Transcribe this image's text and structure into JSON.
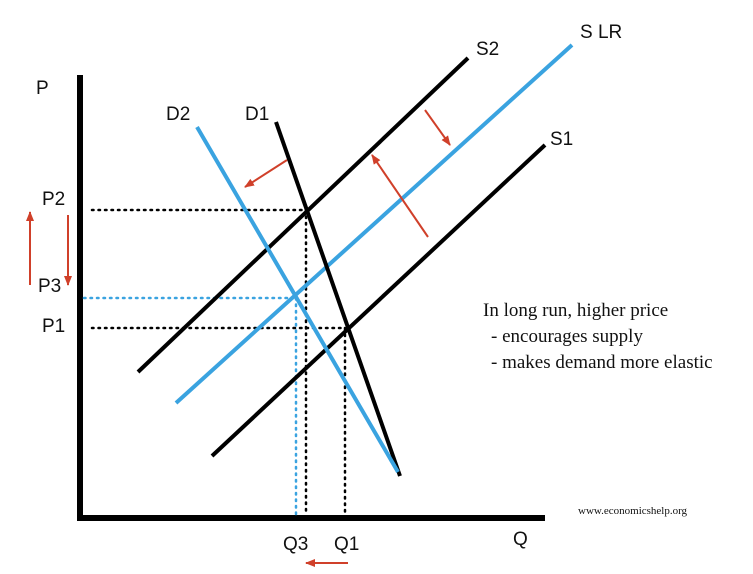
{
  "axes": {
    "y": "P",
    "x": "Q"
  },
  "curves": {
    "d2": "D2",
    "d1": "D1",
    "s2": "S2",
    "slr": "S LR",
    "s1": "S1"
  },
  "prices": [
    "P2",
    "P3",
    "P1"
  ],
  "quantities": [
    "Q3",
    "Q1"
  ],
  "note": [
    "In long run, higher price",
    "- encourages supply",
    "- makes demand more elastic"
  ],
  "source": "www.economicshelp.org"
}
